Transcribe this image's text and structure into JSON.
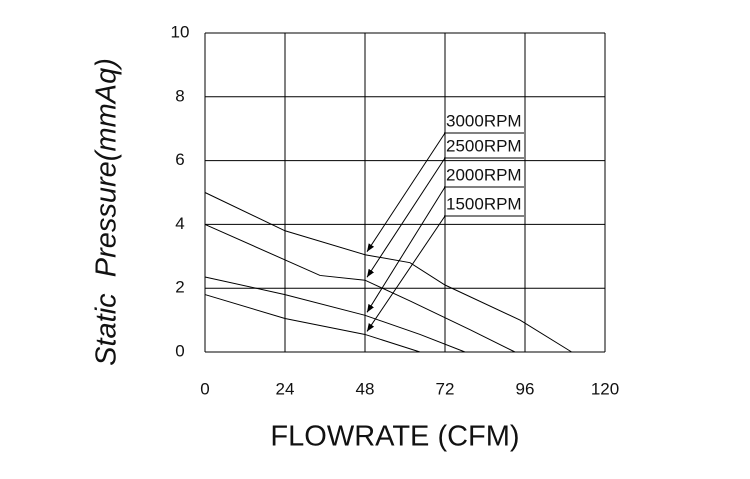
{
  "chart_data": {
    "type": "line",
    "xlabel": "FLOWRATE (CFM)",
    "ylabel": "Static  Pressure(mmAq)",
    "xlim": [
      0,
      120
    ],
    "xticks": [
      0,
      24,
      48,
      72,
      96,
      120
    ],
    "ylim": [
      0,
      10
    ],
    "yticks": [
      0,
      2,
      4,
      6,
      8,
      10
    ],
    "grid": true,
    "series": [
      {
        "name": "3000RPM",
        "color": "#000000",
        "x": [
          0,
          24,
          48,
          61.5,
          72,
          94.5,
          110
        ],
        "values": [
          5.0,
          3.8,
          3.05,
          2.8,
          2.1,
          1.0,
          0
        ]
      },
      {
        "name": "2500RPM",
        "color": "#000000",
        "x": [
          0,
          34.5,
          48,
          61.5,
          79.5,
          93
        ],
        "values": [
          4.0,
          2.4,
          2.25,
          1.6,
          0.7,
          0
        ]
      },
      {
        "name": "2000RPM",
        "color": "#000000",
        "x": [
          0,
          24,
          48,
          64.5,
          78
        ],
        "values": [
          2.35,
          1.8,
          1.15,
          0.55,
          0
        ]
      },
      {
        "name": "1500RPM",
        "color": "#000000",
        "x": [
          0,
          24,
          48,
          64.5
        ],
        "values": [
          1.8,
          1.05,
          0.55,
          0
        ]
      }
    ]
  }
}
